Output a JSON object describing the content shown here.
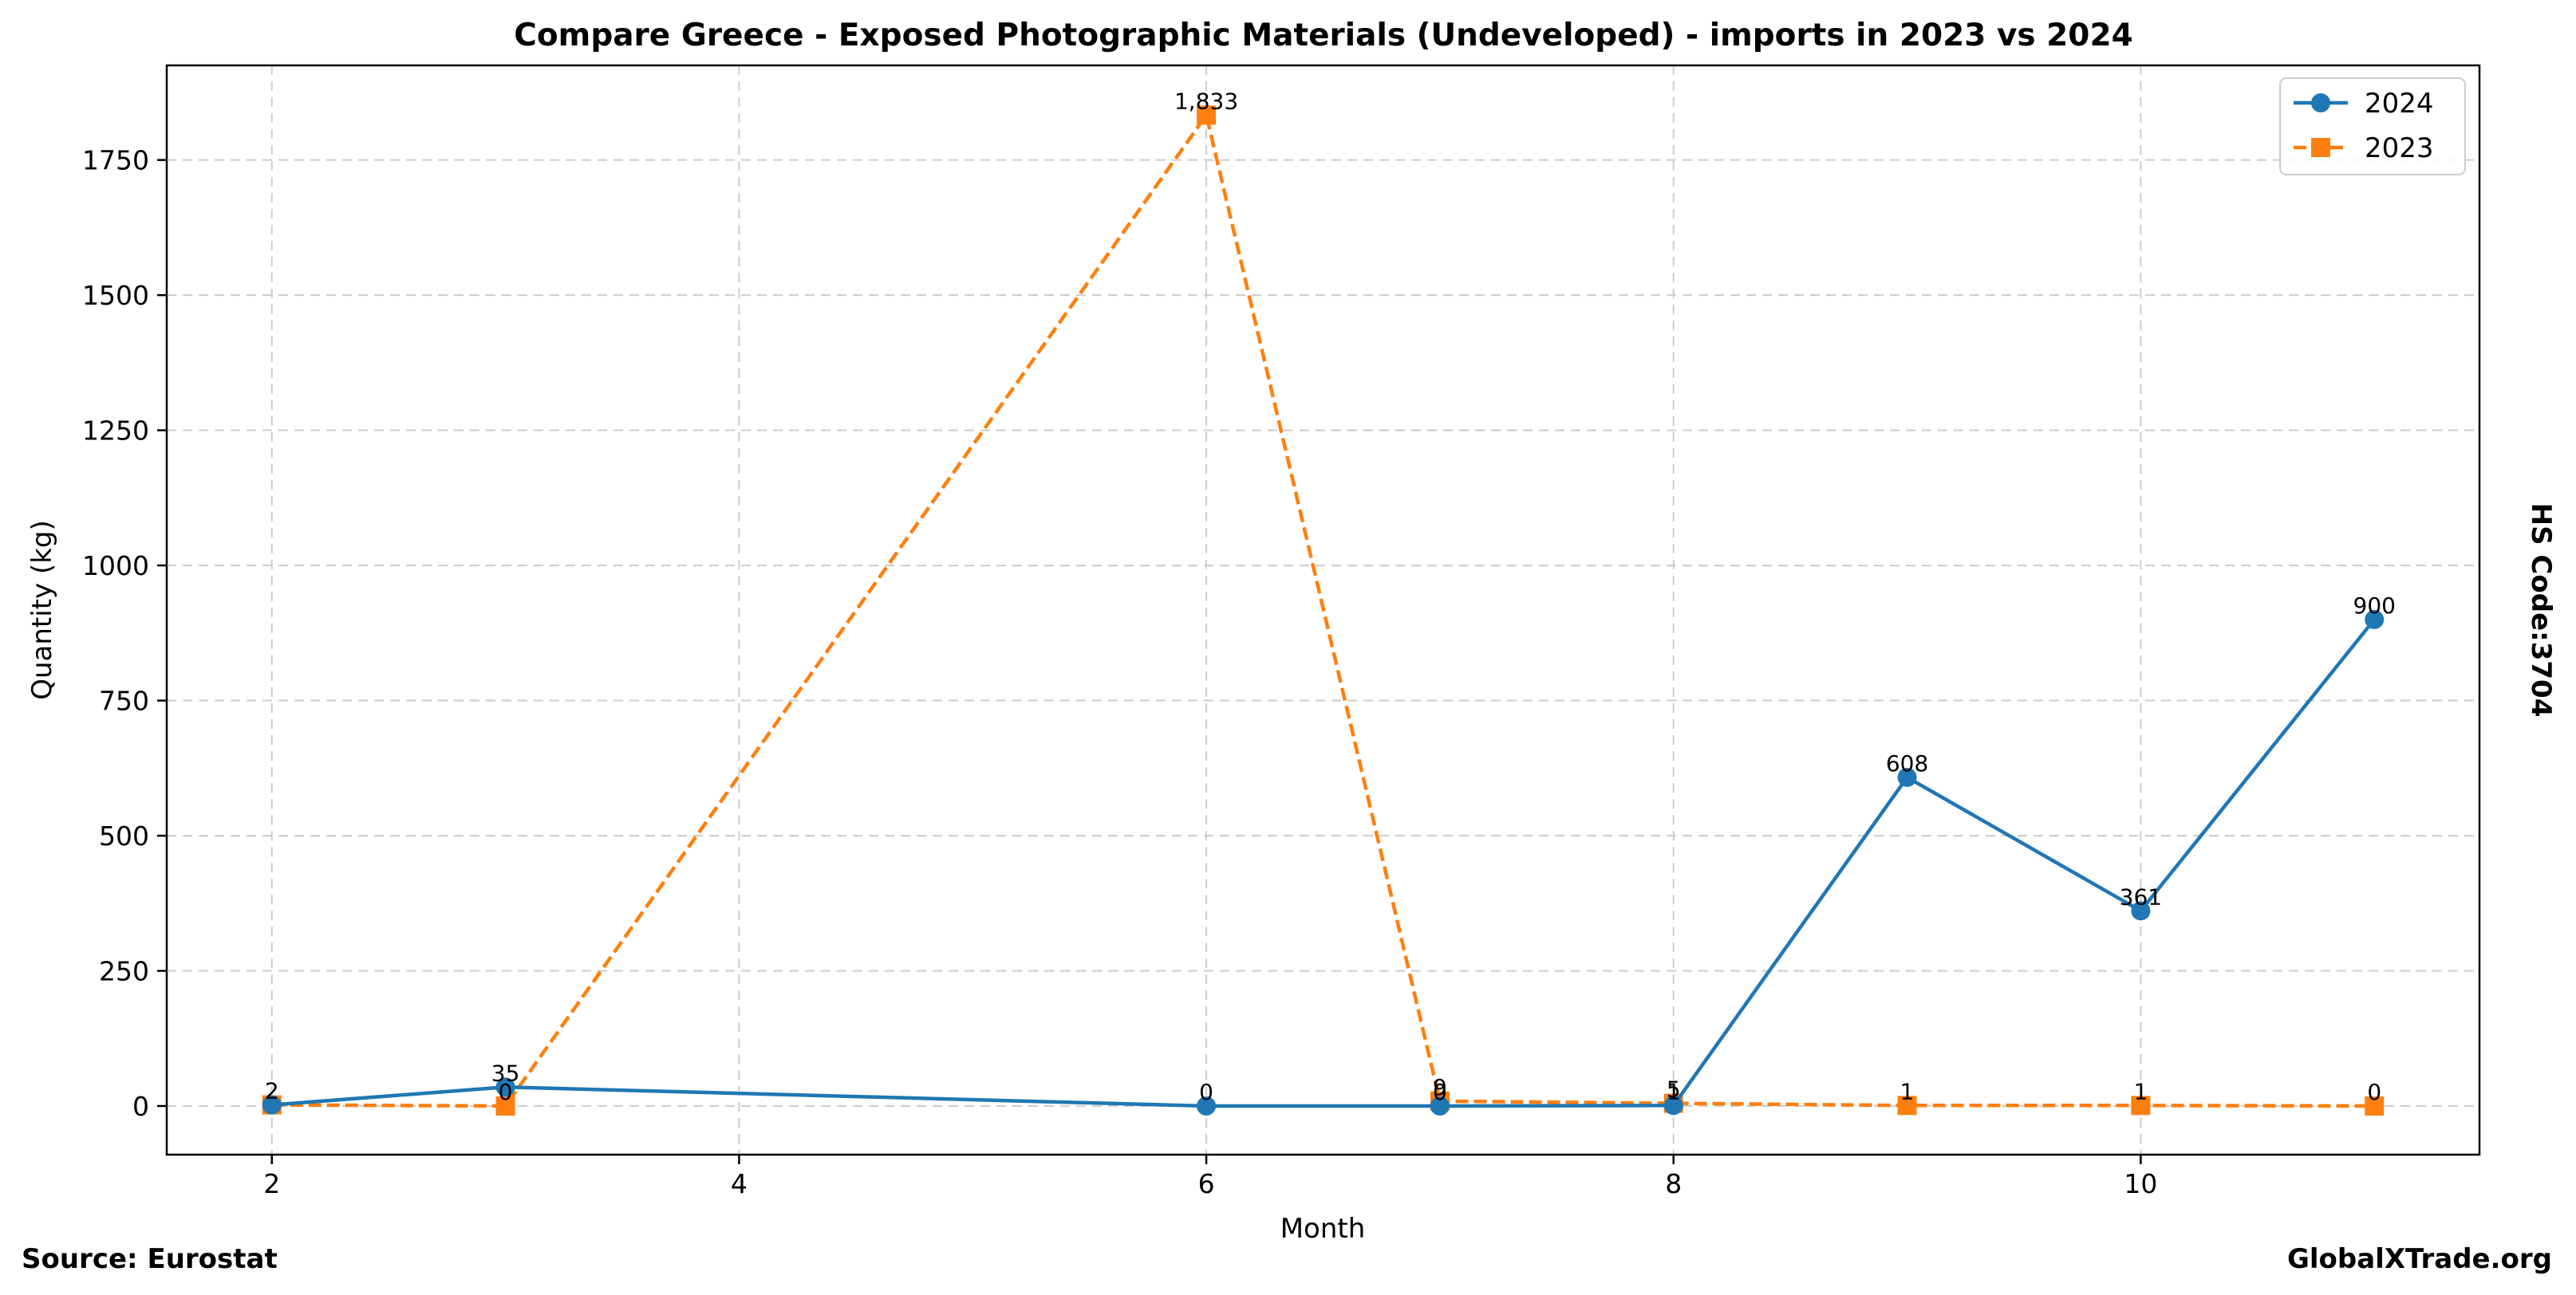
{
  "chart_data": {
    "type": "line",
    "title": "Compare Greece - Exposed Photographic Materials (Undeveloped) - imports in 2023 vs 2024",
    "xlabel": "Month",
    "ylabel": "Quantity (kg)",
    "xlim": [
      1.55,
      11.45
    ],
    "ylim": [
      -90,
      1925
    ],
    "xticks": [
      2,
      4,
      6,
      8,
      10
    ],
    "yticks": [
      0,
      250,
      500,
      750,
      1000,
      1250,
      1500,
      1750
    ],
    "grid": true,
    "legend_position": "top-right",
    "series": [
      {
        "name": "2024",
        "color": "#1f77b4",
        "marker": "circle",
        "line_style": "solid",
        "x": [
          2,
          3,
          6,
          7,
          8,
          9,
          10,
          11
        ],
        "y": [
          2,
          35,
          0,
          0,
          1,
          608,
          361,
          900
        ],
        "labels": [
          "2",
          "35",
          "0",
          "0",
          "1",
          "608",
          "361",
          "900"
        ]
      },
      {
        "name": "2023",
        "color": "#ff7f0e",
        "marker": "square",
        "line_style": "dashed",
        "x": [
          2,
          3,
          6,
          7,
          8,
          9,
          10,
          11
        ],
        "y": [
          2,
          0,
          1833,
          9,
          5,
          1,
          1,
          0
        ],
        "labels": [
          "2",
          "0",
          "1,833",
          "9",
          "5",
          "1",
          "1",
          "0"
        ]
      }
    ]
  },
  "side_label": "HS Code:3704",
  "footer": {
    "source": "Source: Eurostat",
    "brand": "GlobalXTrade.org"
  }
}
